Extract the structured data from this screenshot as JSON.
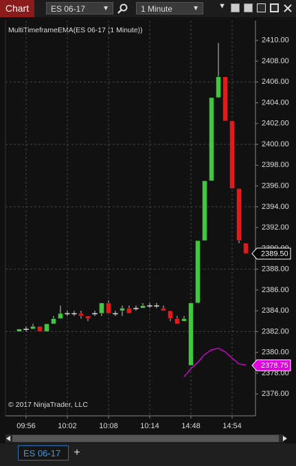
{
  "toolbar": {
    "title": "Chart",
    "instrument": "ES 06-17",
    "interval": "1 Minute"
  },
  "tabs": {
    "active": "ES 06-17",
    "add": "+"
  },
  "chart_data": {
    "type": "candlestick",
    "indicator_label": "MultiTimeframeEMA(ES 06-17 (1 Minute))",
    "copyright": "© 2017 NinjaTrader, LLC",
    "categories": [
      null,
      "09:56",
      null,
      null,
      null,
      null,
      null,
      "10:02",
      null,
      null,
      null,
      null,
      null,
      "10:08",
      null,
      null,
      null,
      null,
      null,
      "10:14",
      null,
      null,
      null,
      null,
      null,
      "14:48",
      null,
      null,
      null,
      null,
      null,
      "14:54",
      null,
      null
    ],
    "open": [
      2382.0,
      2382.25,
      2382.25,
      2382.5,
      2382.0,
      2382.75,
      2383.25,
      2383.75,
      2383.75,
      2383.75,
      2383.5,
      2383.75,
      2383.75,
      2384.75,
      2383.75,
      2384.0,
      2384.25,
      2384.25,
      2384.25,
      2384.5,
      2384.5,
      2384.25,
      2384.0,
      2383.25,
      2383.0,
      2378.75,
      2384.75,
      2390.75,
      2396.5,
      2404.5,
      2406.5,
      2402.25,
      2395.75,
      2390.5
    ],
    "high": [
      2382.25,
      2382.5,
      2382.75,
      2382.5,
      2382.75,
      2383.5,
      2384.5,
      2384.0,
      2384.0,
      2384.0,
      2383.5,
      2384.0,
      2384.75,
      2385.0,
      2384.0,
      2384.5,
      2384.5,
      2384.5,
      2384.75,
      2384.75,
      2384.75,
      2384.5,
      2384.0,
      2383.5,
      2383.5,
      2384.75,
      2390.75,
      2396.5,
      2404.5,
      2409.75,
      2406.5,
      2402.25,
      2395.75,
      2390.5
    ],
    "low": [
      2382.0,
      2382.0,
      2382.25,
      2382.0,
      2382.0,
      2382.75,
      2383.25,
      2383.5,
      2383.5,
      2383.25,
      2383.0,
      2383.5,
      2383.5,
      2383.75,
      2383.5,
      2383.5,
      2383.75,
      2384.0,
      2384.25,
      2384.25,
      2384.25,
      2384.0,
      2383.0,
      2382.75,
      2383.0,
      2378.75,
      2384.75,
      2390.75,
      2396.5,
      2404.5,
      2402.25,
      2395.75,
      2390.5,
      2389.5
    ],
    "close": [
      2382.25,
      2382.25,
      2382.5,
      2382.0,
      2382.75,
      2383.25,
      2383.75,
      2383.75,
      2383.75,
      2383.5,
      2383.25,
      2383.75,
      2384.75,
      2383.75,
      2383.75,
      2384.25,
      2383.75,
      2384.25,
      2384.5,
      2384.5,
      2384.5,
      2384.0,
      2383.25,
      2382.75,
      2383.25,
      2384.75,
      2390.75,
      2396.5,
      2404.5,
      2406.5,
      2402.25,
      2395.75,
      2390.75,
      2389.5
    ],
    "up_color": "#3fc83f",
    "down_color": "#e21a1a",
    "doji_color": "#dddddd",
    "ema": {
      "color": "#e000e0",
      "values": [
        null,
        null,
        null,
        null,
        null,
        null,
        null,
        null,
        null,
        null,
        null,
        null,
        null,
        null,
        null,
        null,
        null,
        null,
        null,
        null,
        null,
        null,
        null,
        null,
        2377.65,
        2378.45,
        2379.05,
        2379.8,
        2380.25,
        2380.4,
        2380.05,
        2379.45,
        2378.9,
        2378.8
      ]
    },
    "ylim": [
      2373.9,
      2411.9
    ],
    "yticks": [
      {
        "value": 2376,
        "label": "2376.00"
      },
      {
        "value": 2378,
        "label": "2378.00"
      },
      {
        "value": 2380,
        "label": "2380.00"
      },
      {
        "value": 2382,
        "label": "2382.00"
      },
      {
        "value": 2384,
        "label": "2384.00"
      },
      {
        "value": 2386,
        "label": "2386.00"
      },
      {
        "value": 2388,
        "label": "2388.00"
      },
      {
        "value": 2390,
        "label": "2390.00"
      },
      {
        "value": 2392,
        "label": "2392.00"
      },
      {
        "value": 2394,
        "label": "2394.00"
      },
      {
        "value": 2396,
        "label": "2396.00"
      },
      {
        "value": 2398,
        "label": "2398.00"
      },
      {
        "value": 2400,
        "label": "2400.00"
      },
      {
        "value": 2402,
        "label": "2402.00"
      },
      {
        "value": 2404,
        "label": "2404.00"
      },
      {
        "value": 2406,
        "label": "2406.00"
      },
      {
        "value": 2408,
        "label": "2408.00"
      },
      {
        "value": 2410,
        "label": "2410.00"
      }
    ],
    "hgrid": [
      2382,
      2388,
      2394,
      2400,
      2406
    ],
    "grid": true,
    "markers": [
      {
        "value": 2389.5,
        "label": "2389.50",
        "color": "#000000"
      },
      {
        "value": 2378.75,
        "label": "2378.75",
        "color": "#e000e0"
      }
    ]
  }
}
